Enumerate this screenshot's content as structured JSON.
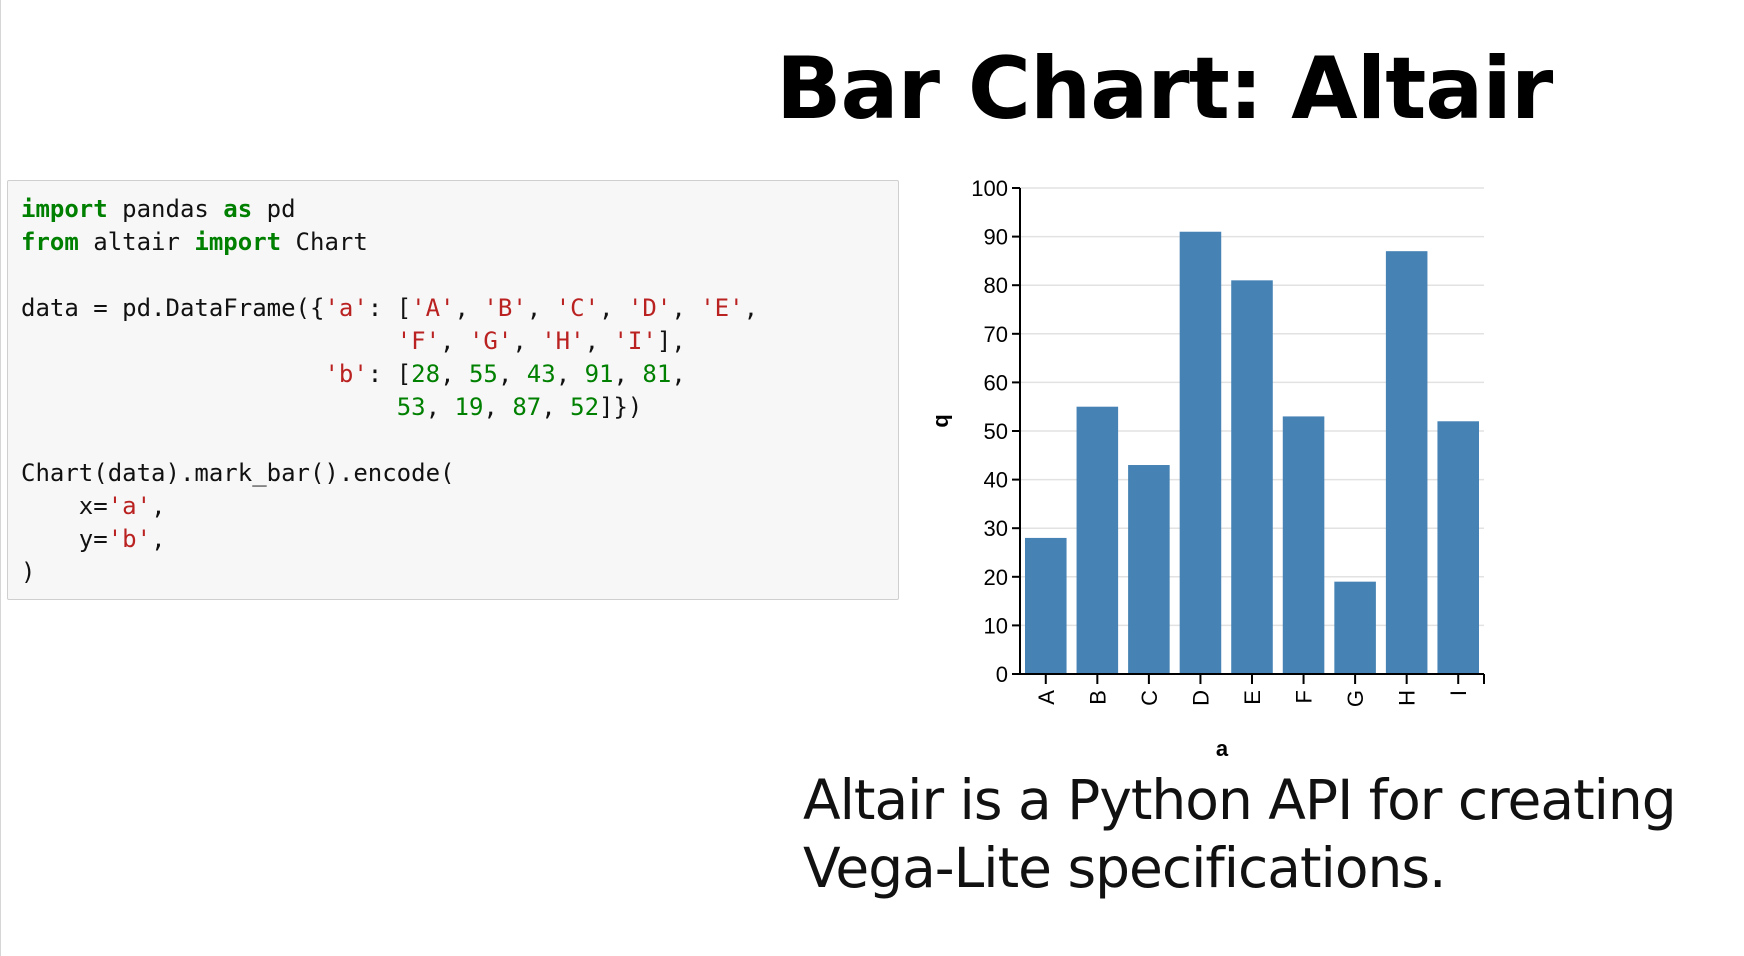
{
  "slide": {
    "title": "Bar Chart: Altair",
    "caption_line1": "Altair is a Python API for creating",
    "caption_line2": "Vega-Lite specifications."
  },
  "code": {
    "lines": [
      [
        {
          "t": "import",
          "c": "kw"
        },
        {
          "t": " pandas ",
          "c": ""
        },
        {
          "t": "as",
          "c": "kw"
        },
        {
          "t": " pd",
          "c": ""
        }
      ],
      [
        {
          "t": "from",
          "c": "kw"
        },
        {
          "t": " altair ",
          "c": ""
        },
        {
          "t": "import",
          "c": "kw"
        },
        {
          "t": " Chart",
          "c": ""
        }
      ],
      [],
      [
        {
          "t": "data = pd.DataFrame({",
          "c": ""
        },
        {
          "t": "'a'",
          "c": "str"
        },
        {
          "t": ": [",
          "c": ""
        },
        {
          "t": "'A'",
          "c": "str"
        },
        {
          "t": ", ",
          "c": ""
        },
        {
          "t": "'B'",
          "c": "str"
        },
        {
          "t": ", ",
          "c": ""
        },
        {
          "t": "'C'",
          "c": "str"
        },
        {
          "t": ", ",
          "c": ""
        },
        {
          "t": "'D'",
          "c": "str"
        },
        {
          "t": ", ",
          "c": ""
        },
        {
          "t": "'E'",
          "c": "str"
        },
        {
          "t": ",",
          "c": ""
        }
      ],
      [
        {
          "t": "                          ",
          "c": ""
        },
        {
          "t": "'F'",
          "c": "str"
        },
        {
          "t": ", ",
          "c": ""
        },
        {
          "t": "'G'",
          "c": "str"
        },
        {
          "t": ", ",
          "c": ""
        },
        {
          "t": "'H'",
          "c": "str"
        },
        {
          "t": ", ",
          "c": ""
        },
        {
          "t": "'I'",
          "c": "str"
        },
        {
          "t": "],",
          "c": ""
        }
      ],
      [
        {
          "t": "                     ",
          "c": ""
        },
        {
          "t": "'b'",
          "c": "str"
        },
        {
          "t": ": [",
          "c": ""
        },
        {
          "t": "28",
          "c": "num"
        },
        {
          "t": ", ",
          "c": ""
        },
        {
          "t": "55",
          "c": "num"
        },
        {
          "t": ", ",
          "c": ""
        },
        {
          "t": "43",
          "c": "num"
        },
        {
          "t": ", ",
          "c": ""
        },
        {
          "t": "91",
          "c": "num"
        },
        {
          "t": ", ",
          "c": ""
        },
        {
          "t": "81",
          "c": "num"
        },
        {
          "t": ",",
          "c": ""
        }
      ],
      [
        {
          "t": "                          ",
          "c": ""
        },
        {
          "t": "53",
          "c": "num"
        },
        {
          "t": ", ",
          "c": ""
        },
        {
          "t": "19",
          "c": "num"
        },
        {
          "t": ", ",
          "c": ""
        },
        {
          "t": "87",
          "c": "num"
        },
        {
          "t": ", ",
          "c": ""
        },
        {
          "t": "52",
          "c": "num"
        },
        {
          "t": "]})",
          "c": ""
        }
      ],
      [],
      [
        {
          "t": "Chart(data).mark_bar().encode(",
          "c": ""
        }
      ],
      [
        {
          "t": "    x=",
          "c": ""
        },
        {
          "t": "'a'",
          "c": "str"
        },
        {
          "t": ",",
          "c": ""
        }
      ],
      [
        {
          "t": "    y=",
          "c": ""
        },
        {
          "t": "'b'",
          "c": "str"
        },
        {
          "t": ",",
          "c": ""
        }
      ],
      [
        {
          "t": ")",
          "c": ""
        }
      ]
    ]
  },
  "chart_data": {
    "type": "bar",
    "categories": [
      "A",
      "B",
      "C",
      "D",
      "E",
      "F",
      "G",
      "H",
      "I"
    ],
    "values": [
      28,
      55,
      43,
      91,
      81,
      53,
      19,
      87,
      52
    ],
    "xlabel": "a",
    "ylabel": "b",
    "ylim": [
      0,
      100
    ],
    "yticks": [
      0,
      10,
      20,
      30,
      40,
      50,
      60,
      70,
      80,
      90,
      100
    ],
    "bar_color": "#4682b4",
    "grid": true,
    "x_tick_labels_rotated": true
  },
  "colors": {
    "keyword": "#008000",
    "string": "#ba2121",
    "number": "#008000"
  }
}
